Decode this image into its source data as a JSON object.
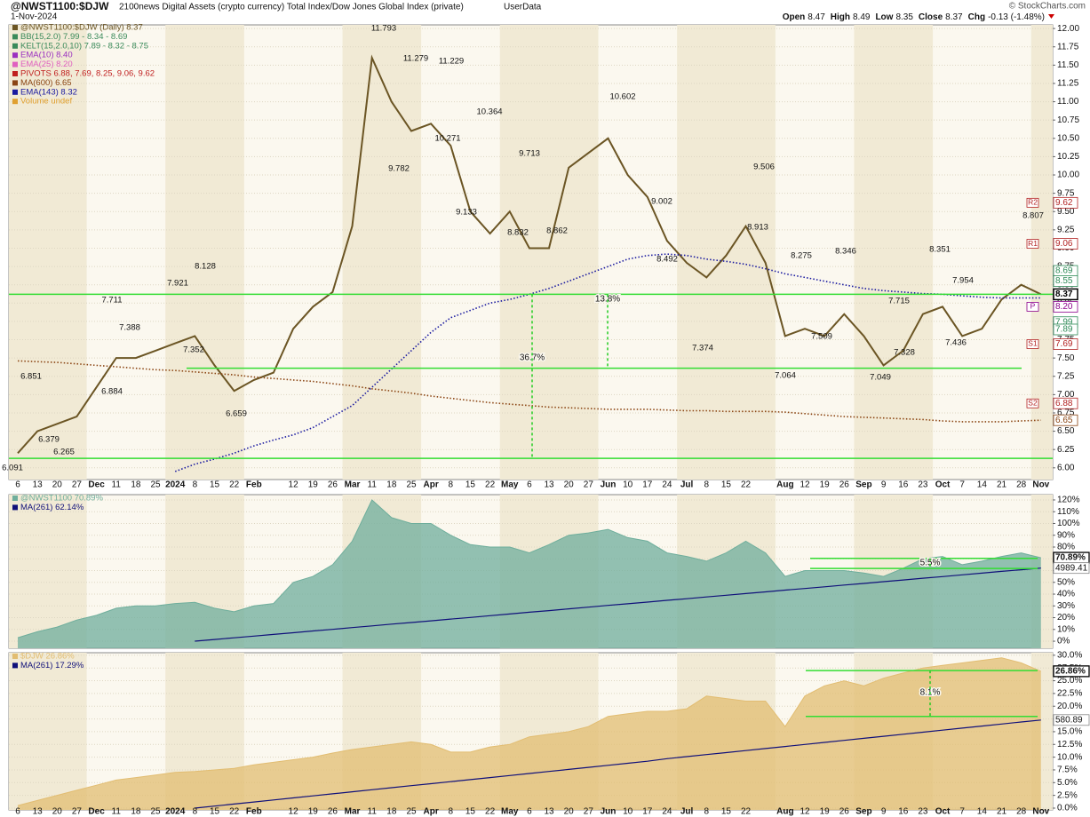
{
  "chart_data": [
    {
      "type": "line",
      "title": "@NWST1100:$DJW",
      "subtitle": "2100news Digital Assets (crypto currency) Total Index/Dow Jones Global Index (private)",
      "source": "UserData",
      "date": "1-Nov-2024",
      "credit": "© StockCharts.com",
      "quote": [
        {
          "label": "Open",
          "value": 8.47
        },
        {
          "label": "High",
          "value": 8.49
        },
        {
          "label": "Low",
          "value": 8.35
        },
        {
          "label": "Close",
          "value": 8.37
        },
        {
          "label": "Chg",
          "value": "-0.13 (-1.48%)"
        }
      ],
      "categories": [
        "6",
        "13",
        "20",
        "27",
        "Dec",
        "11",
        "18",
        "25",
        "2024",
        "8",
        "15",
        "22",
        "Feb",
        null,
        "12",
        "19",
        "26",
        "Mar",
        "11",
        "18",
        "25",
        "Apr",
        "8",
        "15",
        "22",
        "May",
        "6",
        "13",
        "20",
        "27",
        "Jun",
        "10",
        "17",
        "24",
        "Jul",
        "8",
        "15",
        "22",
        null,
        "Aug",
        "12",
        "19",
        "26",
        "Sep",
        "9",
        "16",
        "23",
        "Oct",
        "7",
        "14",
        "21",
        "28",
        "Nov"
      ],
      "series": [
        {
          "name": "@NWST1100:$DJW (Daily) 8.37",
          "color": "#6b5524",
          "style": "solid",
          "values": [
            6.2,
            6.5,
            6.6,
            6.7,
            7.1,
            7.5,
            7.5,
            7.6,
            7.7,
            7.8,
            7.4,
            7.05,
            7.2,
            7.3,
            7.9,
            8.2,
            8.4,
            9.3,
            11.6,
            11.0,
            10.6,
            10.7,
            10.4,
            9.5,
            9.2,
            9.5,
            9.0,
            9.0,
            10.1,
            10.3,
            10.5,
            10.0,
            9.7,
            9.1,
            8.8,
            8.6,
            8.9,
            9.3,
            8.8,
            7.8,
            7.9,
            7.8,
            8.1,
            7.8,
            7.4,
            7.6,
            8.1,
            8.2,
            7.8,
            7.9,
            8.3,
            8.5,
            8.37
          ]
        },
        {
          "name": "MA(600) 6.65",
          "color": "#8b4513",
          "style": "dotted",
          "values": [
            7.46,
            7.45,
            7.44,
            7.42,
            7.4,
            7.38,
            7.36,
            7.34,
            7.33,
            7.31,
            7.29,
            7.27,
            7.24,
            7.22,
            7.2,
            7.18,
            7.15,
            7.12,
            7.08,
            7.05,
            7.02,
            6.98,
            6.95,
            6.92,
            6.89,
            6.87,
            6.85,
            6.83,
            6.82,
            6.81,
            6.8,
            6.8,
            6.8,
            6.79,
            6.78,
            6.78,
            6.77,
            6.77,
            6.77,
            6.76,
            6.74,
            6.72,
            6.7,
            6.69,
            6.68,
            6.67,
            6.66,
            6.64,
            6.63,
            6.63,
            6.63,
            6.64,
            6.65
          ]
        },
        {
          "name": "EMA(143) 8.32",
          "color": "#1a1aa0",
          "style": "dotted",
          "values": [
            null,
            null,
            null,
            null,
            null,
            null,
            null,
            null,
            5.95,
            6.05,
            6.12,
            6.2,
            6.3,
            6.38,
            6.45,
            6.55,
            6.7,
            6.85,
            7.1,
            7.35,
            7.6,
            7.85,
            8.05,
            8.15,
            8.25,
            8.3,
            8.37,
            8.45,
            8.55,
            8.65,
            8.75,
            8.85,
            8.9,
            8.92,
            8.9,
            8.85,
            8.82,
            8.78,
            8.72,
            8.65,
            8.6,
            8.55,
            8.5,
            8.45,
            8.42,
            8.4,
            8.38,
            8.37,
            8.35,
            8.33,
            8.32,
            8.32,
            8.32
          ]
        }
      ],
      "indicators": [
        {
          "text": "BB(15,2.0) 7.99 - 8.34 - 8.69",
          "color": "#3a8a5a"
        },
        {
          "text": "KELT(15,2.0,10) 7.89 - 8.32 - 8.75",
          "color": "#3a8a5a"
        },
        {
          "text": "EMA(10) 8.40",
          "color": "#9b30c0"
        },
        {
          "text": "EMA(25) 8.20",
          "color": "#e060c0"
        },
        {
          "text": "PIVOTS 6.88, 7.69, 8.25, 9.06, 9.62",
          "color": "#c02020"
        },
        {
          "text": "Volume undef",
          "color": "#e0a030"
        }
      ],
      "price_labels": [
        6.091,
        6.265,
        6.379,
        6.851,
        6.884,
        7.711,
        7.388,
        7.921,
        8.128,
        7.352,
        6.659,
        11.793,
        11.279,
        11.229,
        10.364,
        10.271,
        9.782,
        9.713,
        9.133,
        8.832,
        8.862,
        10.602,
        9.002,
        8.492,
        9.506,
        8.913,
        7.374,
        7.064,
        8.275,
        8.346,
        7.509,
        7.715,
        7.328,
        7.049,
        8.351,
        7.954,
        7.436,
        8.807
      ],
      "badges": [
        {
          "value": 9.62,
          "label": "9.62",
          "pivot": "R2",
          "color": "#b22222"
        },
        {
          "value": 9.06,
          "label": "9.06",
          "pivot": "R1",
          "color": "#b22222"
        },
        {
          "value": 8.69,
          "label": "8.69",
          "color": "#2e8b57"
        },
        {
          "value": 8.55,
          "label": "8.55",
          "color": "#2e8b57"
        },
        {
          "value": 8.37,
          "label": "8.37",
          "color": "#000000"
        },
        {
          "value": 8.2,
          "label": "8.20",
          "pivot": "P",
          "color": "#8b008b"
        },
        {
          "value": 7.99,
          "label": "7.99",
          "color": "#2e8b57"
        },
        {
          "value": 7.89,
          "label": "7.89",
          "color": "#2e8b57"
        },
        {
          "value": 7.69,
          "label": "7.69",
          "pivot": "S1",
          "color": "#b22222"
        },
        {
          "value": 6.88,
          "label": "6.88",
          "pivot": "S2",
          "color": "#b22222"
        },
        {
          "value": 6.65,
          "label": "6.65",
          "color": "#8b4513"
        }
      ],
      "hlines": [
        8.37,
        7.36,
        6.13
      ],
      "annotations": [
        "36.7%",
        "13.8%"
      ],
      "ylim": [
        5.84,
        12.05
      ],
      "yticks": [
        {
          "value": 6,
          "label": "6.00"
        },
        {
          "value": 6.25,
          "label": "6.25"
        },
        {
          "value": 6.5,
          "label": "6.50"
        },
        {
          "value": 6.75,
          "label": "6.75"
        },
        {
          "value": 7,
          "label": "7.00"
        },
        {
          "value": 7.25,
          "label": "7.25"
        },
        {
          "value": 7.5,
          "label": "7.50"
        },
        {
          "value": 7.75,
          "label": "7.75"
        },
        {
          "value": 8,
          "label": "8.00"
        },
        {
          "value": 8.25,
          "label": "8.25"
        },
        {
          "value": 8.5,
          "label": "8.50"
        },
        {
          "value": 8.75,
          "label": "8.75"
        },
        {
          "value": 9,
          "label": "9.00"
        },
        {
          "value": 9.25,
          "label": "9.25"
        },
        {
          "value": 9.5,
          "label": "9.50"
        },
        {
          "value": 9.75,
          "label": "9.75"
        },
        {
          "value": 10,
          "label": "10.00"
        },
        {
          "value": 10.25,
          "label": "10.25"
        },
        {
          "value": 10.5,
          "label": "10.50"
        },
        {
          "value": 10.75,
          "label": "10.75"
        },
        {
          "value": 11,
          "label": "11.00"
        },
        {
          "value": 11.25,
          "label": "11.25"
        },
        {
          "value": 11.5,
          "label": "11.50"
        },
        {
          "value": 11.75,
          "label": "11.75"
        },
        {
          "value": 12,
          "label": "12.00"
        }
      ],
      "grid": true
    },
    {
      "type": "area",
      "series": [
        {
          "name": "@NWST1100 70.89%",
          "color": "#6fae9c",
          "style": "area",
          "values": [
            3,
            8,
            12,
            18,
            22,
            28,
            30,
            30,
            32,
            33,
            28,
            25,
            30,
            32,
            50,
            55,
            65,
            85,
            120,
            105,
            100,
            100,
            90,
            82,
            80,
            80,
            75,
            82,
            90,
            92,
            95,
            88,
            85,
            75,
            72,
            68,
            75,
            85,
            75,
            55,
            60,
            60,
            60,
            58,
            55,
            62,
            70,
            72,
            65,
            68,
            72,
            75,
            70.89
          ]
        },
        {
          "name": "MA(261) 62.14%",
          "color": "#10107a",
          "style": "solid",
          "values": [
            null,
            null,
            null,
            null,
            null,
            null,
            null,
            null,
            null,
            0,
            1.5,
            2.9,
            4.3,
            5.8,
            7.2,
            8.7,
            10.1,
            11.6,
            13.0,
            14.5,
            15.9,
            17.3,
            18.8,
            20.2,
            21.7,
            23.1,
            24.6,
            26.0,
            27.5,
            28.9,
            30.4,
            31.8,
            33.2,
            34.7,
            36.1,
            37.6,
            39.0,
            40.5,
            41.9,
            43.4,
            44.8,
            46.2,
            47.7,
            49.1,
            50.6,
            52.0,
            53.5,
            54.9,
            56.4,
            57.8,
            59.3,
            60.7,
            62.14
          ]
        }
      ],
      "badges": [
        "70.89%",
        "4989.41"
      ],
      "hlines": [
        70.4,
        61.8
      ],
      "annotations": [
        "5.5%"
      ],
      "ylim": [
        -6,
        124.5
      ],
      "yticks": [
        {
          "value": 0,
          "label": "0%"
        },
        {
          "value": 10,
          "label": "10%"
        },
        {
          "value": 20,
          "label": "20%"
        },
        {
          "value": 30,
          "label": "30%"
        },
        {
          "value": 40,
          "label": "40%"
        },
        {
          "value": 50,
          "label": "50%"
        },
        {
          "value": 60,
          "label": "60%"
        },
        {
          "value": 70,
          "label": "70%"
        },
        {
          "value": 80,
          "label": "80%"
        },
        {
          "value": 90,
          "label": "90%"
        },
        {
          "value": 100,
          "label": "100%"
        },
        {
          "value": 110,
          "label": "110%"
        },
        {
          "value": 120,
          "label": "120%"
        }
      ],
      "grid": true
    },
    {
      "type": "area",
      "categories": [
        "6",
        "13",
        "20",
        "27",
        "Dec",
        "11",
        "18",
        "25",
        "2024",
        "8",
        "15",
        "22",
        "Feb",
        null,
        "12",
        "19",
        "26",
        "Mar",
        "11",
        "18",
        "25",
        "Apr",
        "8",
        "15",
        "22",
        "May",
        "6",
        "13",
        "20",
        "27",
        "Jun",
        "10",
        "17",
        "24",
        "Jul",
        "8",
        "15",
        "22",
        null,
        "Aug",
        "12",
        "19",
        "26",
        "Sep",
        "9",
        "16",
        "23",
        "Oct",
        "7",
        "14",
        "21",
        "28",
        "Nov"
      ],
      "series": [
        {
          "name": "$DJW 26.86%",
          "color": "#e2bd72",
          "style": "area",
          "values": [
            0.5,
            1.5,
            2.5,
            3.5,
            4.5,
            5.5,
            6,
            6.5,
            7,
            7.2,
            7.5,
            7.8,
            8.5,
            9,
            9.5,
            10,
            10.8,
            11.5,
            12,
            12.5,
            13,
            12.5,
            11,
            11,
            12,
            12.5,
            14,
            14.5,
            15,
            16,
            18,
            18.5,
            19,
            19,
            19.5,
            22,
            21.5,
            21,
            21,
            16,
            22,
            24,
            25,
            24,
            25.5,
            26.5,
            27.5,
            28,
            28.5,
            29,
            29.5,
            28.5,
            26.86
          ]
        },
        {
          "name": "MA(261) 17.29%",
          "color": "#10107a",
          "style": "solid",
          "values": [
            null,
            null,
            null,
            null,
            null,
            null,
            null,
            null,
            null,
            0,
            0.4,
            0.8,
            1.2,
            1.6,
            2.0,
            2.4,
            2.8,
            3.2,
            3.6,
            4.0,
            4.4,
            4.8,
            5.2,
            5.6,
            6.0,
            6.4,
            6.8,
            7.2,
            7.6,
            8.0,
            8.4,
            8.8,
            9.2,
            9.7,
            10.1,
            10.5,
            10.9,
            11.3,
            11.7,
            12.1,
            12.5,
            12.9,
            13.3,
            13.7,
            14.1,
            14.5,
            14.9,
            15.3,
            15.7,
            16.1,
            16.5,
            16.9,
            17.29
          ]
        }
      ],
      "badges": [
        "26.86%",
        "580.89"
      ],
      "hlines": [
        27.0,
        18.0
      ],
      "annotations": [
        "8.1%"
      ],
      "ylim": [
        -0.35,
        30.5
      ],
      "yticks": [
        {
          "value": 0,
          "label": "0.0%"
        },
        {
          "value": 2.5,
          "label": "2.5%"
        },
        {
          "value": 5,
          "label": "5.0%"
        },
        {
          "value": 7.5,
          "label": "7.5%"
        },
        {
          "value": 10,
          "label": "10.0%"
        },
        {
          "value": 12.5,
          "label": "12.5%"
        },
        {
          "value": 15,
          "label": "15.0%"
        },
        {
          "value": 17.5,
          "label": "17.5%"
        },
        {
          "value": 20,
          "label": "20.0%"
        },
        {
          "value": 22.5,
          "label": "22.5%"
        },
        {
          "value": 25,
          "label": "25.0%"
        },
        {
          "value": 27.5,
          "label": "27.5%"
        },
        {
          "value": 30,
          "label": "30.0%"
        }
      ],
      "grid": true
    }
  ]
}
